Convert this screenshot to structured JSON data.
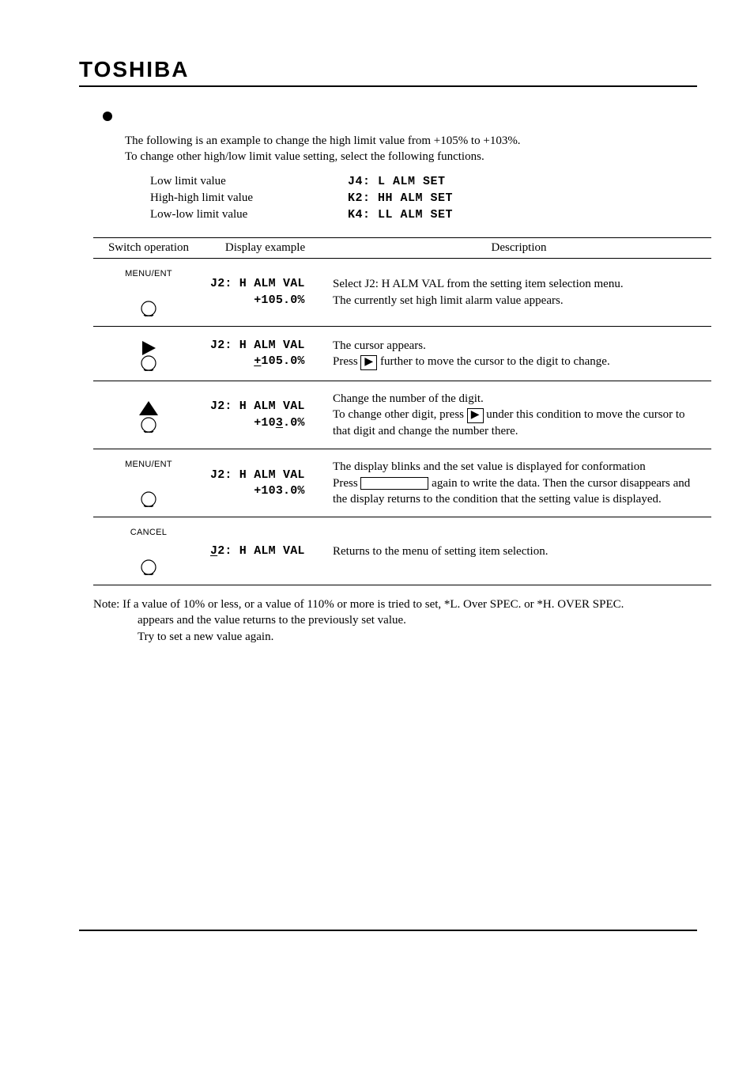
{
  "brand": "TOSHIBA",
  "intro_l1": "The following is an example to change the high limit value from +105% to +103%.",
  "intro_l2": "To change other high/low limit value setting, select the following functions.",
  "limits": [
    {
      "label": "Low limit value",
      "code": "J4: L ALM SET"
    },
    {
      "label": "High-high limit value",
      "code": "K2: HH ALM SET"
    },
    {
      "label": "Low-low limit value",
      "code": "K4: LL ALM SET"
    }
  ],
  "headers": {
    "c1": "Switch operation",
    "c2": "Display example",
    "c3": "Description"
  },
  "rows": [
    {
      "switch": {
        "label": "MENU/ENT",
        "glyph": "none"
      },
      "disp_line1": "J2: H ALM VAL",
      "disp_line2_pre": "      +105.0%",
      "desc_html": "Select J2: H ALM VAL from the setting item selection menu.<br>The currently set high limit alarm value appears."
    },
    {
      "switch": {
        "label": "",
        "glyph": "right"
      },
      "disp_line1": "J2: H ALM VAL",
      "disp_line2_segments": [
        {
          "t": "      ",
          "u": false
        },
        {
          "t": "+",
          "u": true
        },
        {
          "t": "105.0%",
          "u": false
        }
      ],
      "desc_parts": [
        {
          "t": "The cursor appears.",
          "br": true
        },
        {
          "t": "Press "
        },
        {
          "box": "▶"
        },
        {
          "t": " further to move the cursor to the digit to change."
        }
      ]
    },
    {
      "switch": {
        "label": "",
        "glyph": "up"
      },
      "disp_line1": "J2: H ALM VAL",
      "disp_line2_segments": [
        {
          "t": "      +10",
          "u": false
        },
        {
          "t": "3",
          "u": true
        },
        {
          "t": ".0%",
          "u": false
        }
      ],
      "desc_parts": [
        {
          "t": "Change the number of the digit.",
          "br": true
        },
        {
          "t": "To change other digit, press "
        },
        {
          "box": "▶"
        },
        {
          "t": " under this condition to move the cursor to that digit and change the number there."
        }
      ]
    },
    {
      "switch": {
        "label": "MENU/ENT",
        "glyph": "none"
      },
      "disp_line1": "J2: H ALM VAL",
      "disp_line2_pre": "      +103.0%",
      "desc_parts": [
        {
          "t": "The display blinks and the set value is displayed for conformation",
          "br": true
        },
        {
          "t": "Press "
        },
        {
          "boxwide": true
        },
        {
          "t": " again to write the data. Then the cursor disappears and the display returns to the condition that the setting value is displayed."
        }
      ]
    },
    {
      "switch": {
        "label": "CANCEL",
        "glyph": "none"
      },
      "disp_line1_segments": [
        {
          "t": "J",
          "u": true
        },
        {
          "t": "2: H ALM VAL",
          "u": false
        }
      ],
      "desc_html": "Returns to the menu of setting item selection."
    }
  ],
  "note_l1": "Note: If a value of 10% or less, or a value of 110% or more is tried to set, *L. Over SPEC. or *H. OVER SPEC.",
  "note_l2": "appears and the value returns to the previously set value.",
  "note_l3": "Try to set a new value again."
}
